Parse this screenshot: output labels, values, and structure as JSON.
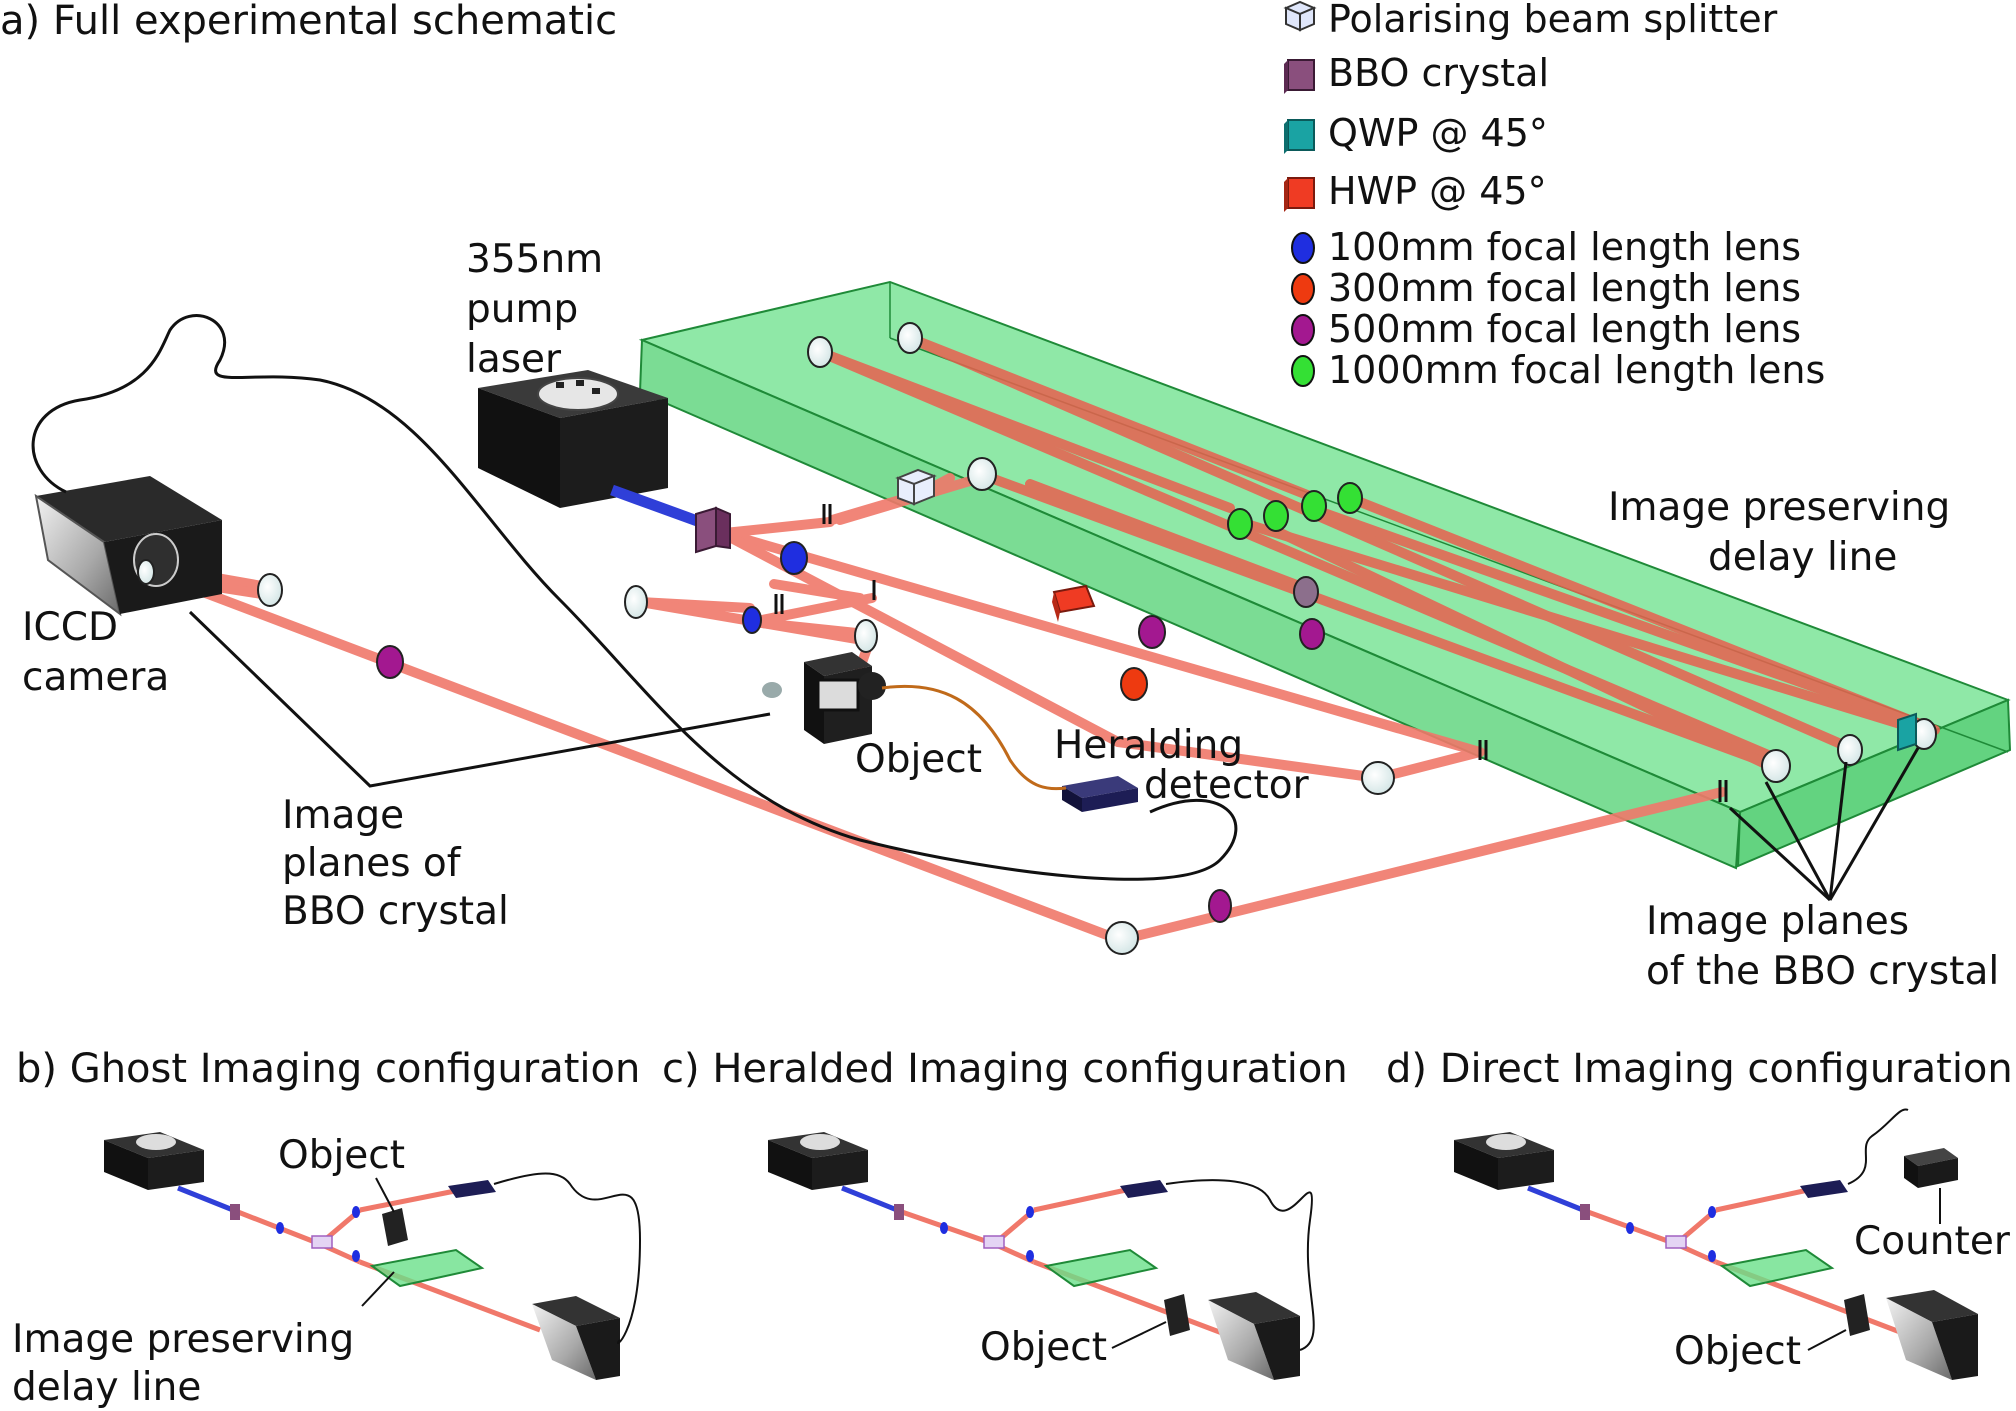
{
  "panel_a": {
    "title": "a) Full experimental schematic",
    "pump_label": [
      "355nm",
      "pump",
      "laser"
    ],
    "camera_label": [
      "ICCD",
      "camera"
    ],
    "image_planes_left": [
      "Image",
      "planes of",
      "BBO crystal"
    ],
    "object_label": "Object",
    "herald_label": [
      "Heralding",
      "detector"
    ],
    "delay_line_label": [
      "Image preserving",
      "delay line"
    ],
    "image_planes_right": [
      "Image planes",
      "of the BBO crystal"
    ]
  },
  "legend": [
    {
      "label": "Polarising beam splitter",
      "icon": "beam-splitter-cube-icon",
      "color": "#cdd6f0"
    },
    {
      "label": "BBO crystal",
      "icon": "bbo-crystal-icon",
      "color": "#8a4f7d"
    },
    {
      "label": "QWP @ 45°",
      "icon": "qwp-icon",
      "color": "#1aa3a3"
    },
    {
      "label": "HWP @ 45°",
      "icon": "hwp-icon",
      "color": "#ef3b23"
    },
    {
      "label": "100mm focal length lens",
      "icon": "lens-100mm-icon",
      "color": "#1f2ee0"
    },
    {
      "label": "300mm focal length lens",
      "icon": "lens-300mm-icon",
      "color": "#ee3a10"
    },
    {
      "label": "500mm focal length lens",
      "icon": "lens-500mm-icon",
      "color": "#a31890"
    },
    {
      "label": "1000mm focal length lens",
      "icon": "lens-1000mm-icon",
      "color": "#34e034"
    }
  ],
  "panel_b": {
    "title": "b) Ghost Imaging configuration",
    "object_label": "Object",
    "delay_label": [
      "Image preserving",
      "delay line"
    ]
  },
  "panel_c": {
    "title": "c) Heralded Imaging configuration",
    "object_label": "Object"
  },
  "panel_d": {
    "title": "d) Direct Imaging configuration",
    "object_label": "Object",
    "counter_label": "Counter"
  },
  "colors": {
    "beam": "#f0786a",
    "pump_beam": "#2f3fd8",
    "delay_box": "#3fd26a",
    "delay_box_edge": "#1f8a38"
  }
}
